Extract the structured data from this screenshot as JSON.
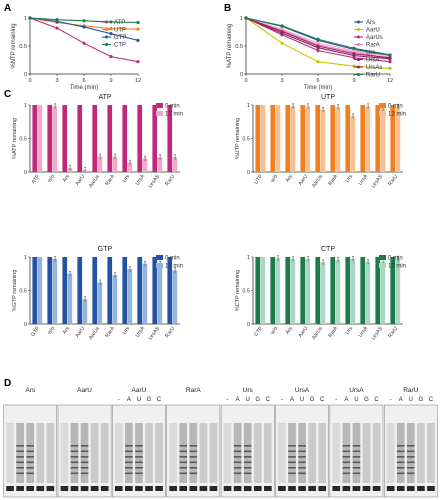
{
  "panels": {
    "A": {
      "letter": "A",
      "chart_data": {
        "type": "line",
        "xlabel": "Time (min)",
        "ylabel": "%NTP remaining",
        "x": [
          0,
          3,
          6,
          9,
          12
        ],
        "xticks": [
          "0",
          "3",
          "6",
          "9",
          "12"
        ],
        "yticks": [
          "0",
          "0.5",
          "1"
        ],
        "ylim": [
          0,
          1
        ],
        "legend_position": "top-right",
        "series": [
          {
            "name": "ATP",
            "color": "#c0287a",
            "values": [
              1.0,
              0.82,
              0.55,
              0.31,
              0.22
            ]
          },
          {
            "name": "UTP",
            "color": "#f07f22",
            "values": [
              1.0,
              0.92,
              0.86,
              0.81,
              0.8
            ]
          },
          {
            "name": "GTP",
            "color": "#2453a3",
            "values": [
              1.0,
              0.94,
              0.84,
              0.72,
              0.6
            ]
          },
          {
            "name": "CTP",
            "color": "#1d7a4c",
            "values": [
              1.0,
              0.97,
              0.95,
              0.93,
              0.92
            ]
          }
        ]
      }
    },
    "B": {
      "letter": "B",
      "chart_data": {
        "type": "line",
        "xlabel": "Time (min)",
        "ylabel": "%ATP remaining",
        "x": [
          0,
          3,
          6,
          9,
          12
        ],
        "xticks": [
          "0",
          "3",
          "6",
          "9",
          "12"
        ],
        "yticks": [
          "0",
          "0.5",
          "1"
        ],
        "ylim": [
          0,
          1
        ],
        "legend_position": "top-right",
        "series": [
          {
            "name": "Ars",
            "color": "#2453a3",
            "values": [
              1.0,
              0.85,
              0.6,
              0.44,
              0.33
            ]
          },
          {
            "name": "AarU",
            "color": "#c8c800",
            "values": [
              1.0,
              0.55,
              0.22,
              0.14,
              0.1
            ]
          },
          {
            "name": "AarUs",
            "color": "#c0287a",
            "values": [
              1.0,
              0.7,
              0.42,
              0.29,
              0.22
            ]
          },
          {
            "name": "RarA",
            "color": "#e080b8",
            "values": [
              1.0,
              0.78,
              0.52,
              0.39,
              0.28
            ]
          },
          {
            "name": "Urs",
            "color": "#f4a8c8",
            "values": [
              1.0,
              0.8,
              0.55,
              0.42,
              0.3
            ]
          },
          {
            "name": "UrsA",
            "color": "#7a2a6a",
            "values": [
              1.0,
              0.73,
              0.47,
              0.33,
              0.27
            ]
          },
          {
            "name": "UrsAs",
            "color": "#a0205a",
            "values": [
              1.0,
              0.76,
              0.5,
              0.36,
              0.29
            ]
          },
          {
            "name": "RarU",
            "color": "#1d7a4c",
            "values": [
              1.0,
              0.86,
              0.62,
              0.46,
              0.34
            ]
          }
        ]
      }
    },
    "C": {
      "letter": "C",
      "categories_atp": [
        "ATP",
        "w/o",
        "Ars",
        "AarU",
        "AarUs",
        "RarA",
        "Urs",
        "UrsA",
        "UrsAS",
        "RarU"
      ],
      "categories_utp": [
        "UTP",
        "w/o",
        "Ars",
        "AarU",
        "AarUs",
        "RarA",
        "Urs",
        "UrsA",
        "UrsAS",
        "RarU"
      ],
      "categories_gtp": [
        "GTP",
        "w/o",
        "Ars",
        "AarU",
        "AarUs",
        "RarA",
        "Urs",
        "UrsA",
        "UrsAS",
        "RarU"
      ],
      "categories_ctp": [
        "CTP",
        "w/o",
        "Ars",
        "AarU",
        "AarUs",
        "RarA",
        "Urs",
        "UrsA",
        "UrsAS",
        "RarU"
      ],
      "chart_data": [
        {
          "type": "bar",
          "title": "ATP",
          "ylabel": "%ATP remaining",
          "ylim": [
            0,
            1
          ],
          "yticks": [
            "0",
            "0.5",
            "1"
          ],
          "legend_position": "top-right",
          "series": [
            {
              "name": "0 min",
              "color": "#c0287a",
              "values": [
                1,
                1,
                1,
                1,
                1,
                1,
                1,
                1,
                1,
                1
              ]
            },
            {
              "name": "12 min",
              "color": "#f4a8c8",
              "values": [
                1,
                0.98,
                0.06,
                0.03,
                0.23,
                0.23,
                0.14,
                0.2,
                0.22,
                0.22
              ]
            }
          ]
        },
        {
          "type": "bar",
          "title": "UTP",
          "ylabel": "%UTP remaining",
          "ylim": [
            0,
            1
          ],
          "yticks": [
            "0",
            "0.5",
            "1"
          ],
          "legend_position": "top-right",
          "series": [
            {
              "name": "0 min",
              "color": "#f07f22",
              "values": [
                1,
                1,
                1,
                1,
                1,
                1,
                1,
                1,
                1,
                1
              ]
            },
            {
              "name": "12 min",
              "color": "#f8c090",
              "values": [
                1,
                1,
                0.98,
                0.98,
                0.93,
                0.97,
                0.83,
                0.98,
                0.95,
                0.97
              ]
            }
          ]
        },
        {
          "type": "bar",
          "title": "GTP",
          "ylabel": "%GTP remaining",
          "ylim": [
            0,
            1
          ],
          "yticks": [
            "0",
            "0.5",
            "1"
          ],
          "legend_position": "top-right",
          "series": [
            {
              "name": "0 min",
              "color": "#2453a3",
              "values": [
                1,
                1,
                1,
                1,
                1,
                1,
                1,
                1,
                1,
                1
              ]
            },
            {
              "name": "12 min",
              "color": "#93b4dd",
              "values": [
                1,
                0.97,
                0.75,
                0.37,
                0.62,
                0.73,
                0.82,
                0.9,
                0.9,
                0.8
              ]
            }
          ]
        },
        {
          "type": "bar",
          "title": "CTP",
          "ylabel": "%CTP remaining",
          "ylim": [
            0,
            1
          ],
          "yticks": [
            "0",
            "0.5",
            "1"
          ],
          "legend_position": "top-right",
          "series": [
            {
              "name": "0 min",
              "color": "#1d7a4c",
              "values": [
                1,
                1,
                1,
                1,
                1,
                1,
                1,
                1,
                1,
                1
              ]
            },
            {
              "name": "12 min",
              "color": "#a8d8bf",
              "values": [
                1,
                0.98,
                0.97,
                0.97,
                0.92,
                0.96,
                0.97,
                0.93,
                0.93,
                0.97
              ]
            }
          ]
        }
      ]
    },
    "D": {
      "letter": "D",
      "gels": [
        {
          "title": "Ars",
          "lanes": []
        },
        {
          "title": "AarU",
          "lanes": []
        },
        {
          "title": "AarU",
          "lanes": [
            "-",
            "A",
            "U",
            "G",
            "C"
          ]
        },
        {
          "title": "RarA",
          "lanes": []
        },
        {
          "title": "Urs",
          "lanes": [
            "-",
            "A",
            "U",
            "G",
            "C"
          ]
        },
        {
          "title": "UrsA",
          "lanes": [
            "-",
            "A",
            "U",
            "G",
            "C"
          ]
        },
        {
          "title": "UrsA",
          "lanes": [
            "-",
            "A",
            "U",
            "G",
            "C"
          ]
        },
        {
          "title": "RarU",
          "lanes": [
            "-",
            "A",
            "U",
            "G",
            "C"
          ]
        }
      ]
    }
  }
}
